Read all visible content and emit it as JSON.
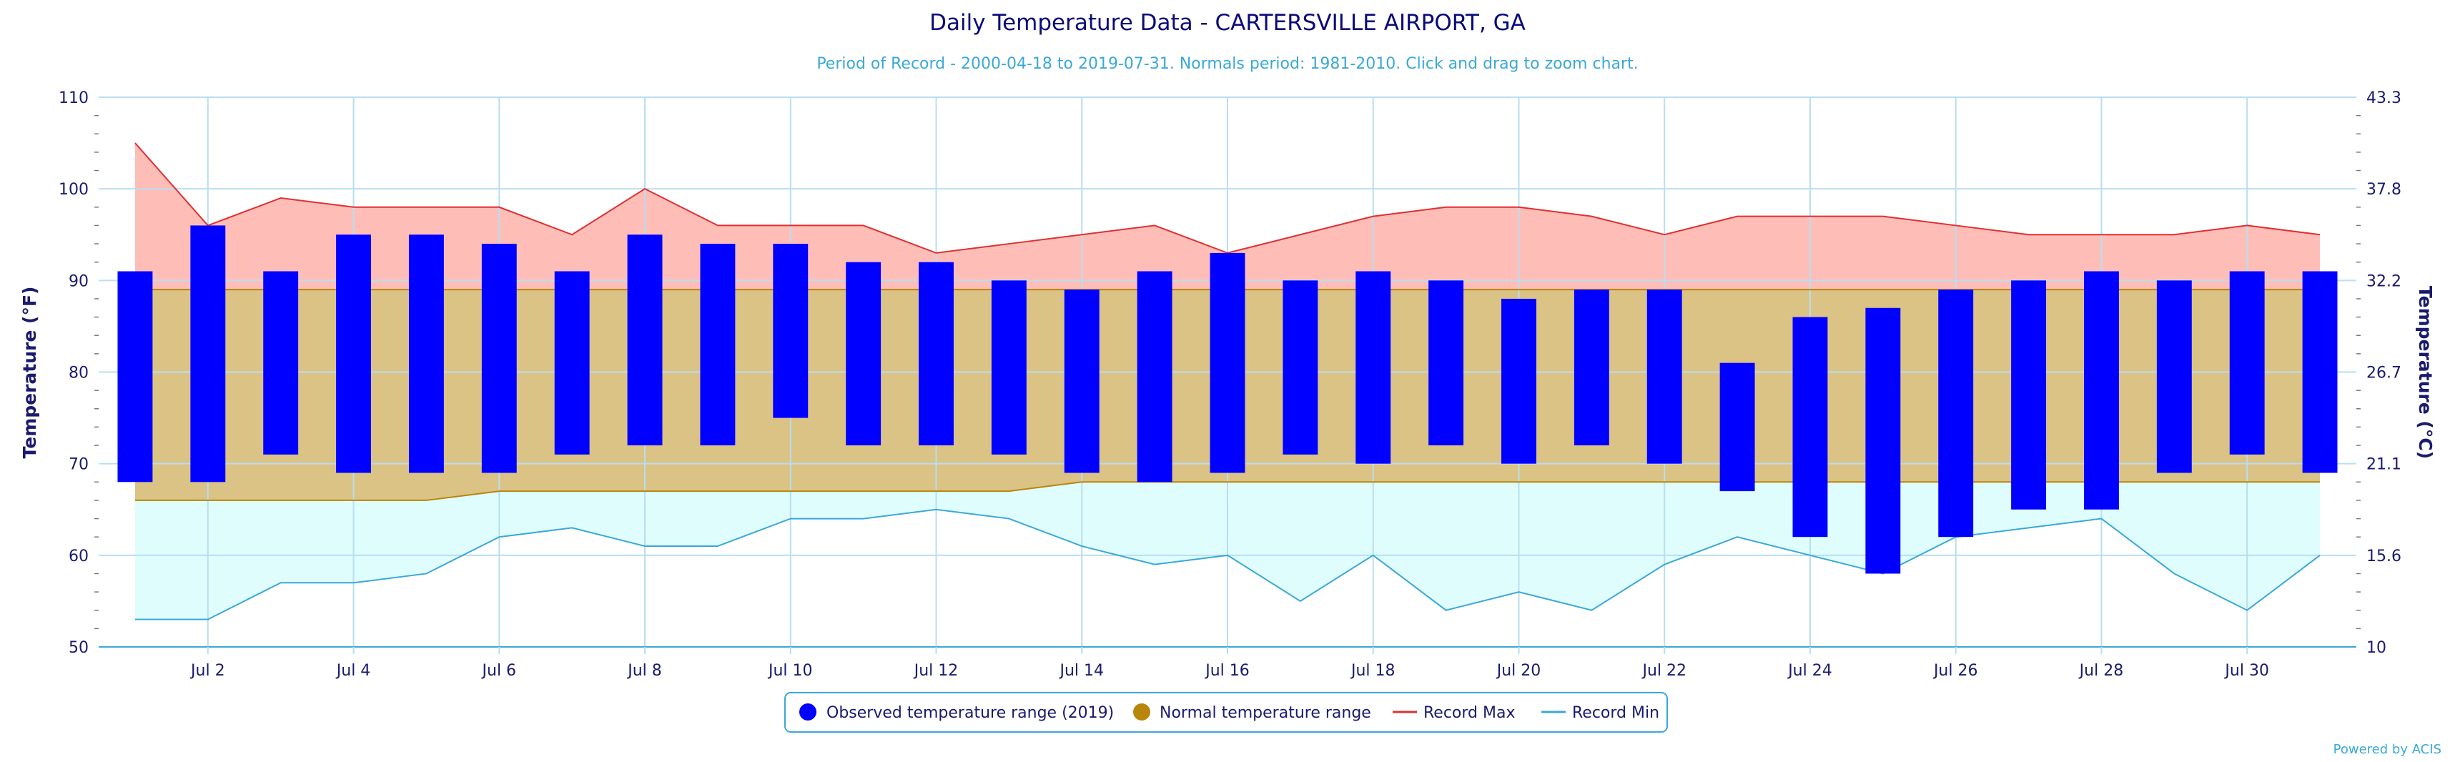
{
  "chart_data": {
    "type": "bar",
    "title": "Daily Temperature Data - CARTERSVILLE AIRPORT, GA",
    "subtitle": "Period of Record - 2000-04-18 to 2019-07-31. Normals period: 1981-2010. Click and drag to zoom chart.",
    "ylabel": "Temperature (°F)",
    "ylabel_right": "Temperature (°C)",
    "ylim": [
      50,
      110
    ],
    "yticks": [
      50,
      60,
      70,
      80,
      90,
      100,
      110
    ],
    "yticks_right": [
      "10",
      "15.6",
      "21.1",
      "26.7",
      "32.2",
      "37.8",
      "43.3"
    ],
    "days": [
      1,
      2,
      3,
      4,
      5,
      6,
      7,
      8,
      9,
      10,
      11,
      12,
      13,
      14,
      15,
      16,
      17,
      18,
      19,
      20,
      21,
      22,
      23,
      24,
      25,
      26,
      27,
      28,
      29,
      30,
      31
    ],
    "xtick_labels": [
      "Jul 2",
      "Jul 4",
      "Jul 6",
      "Jul 8",
      "Jul 10",
      "Jul 12",
      "Jul 14",
      "Jul 16",
      "Jul 18",
      "Jul 20",
      "Jul 22",
      "Jul 24",
      "Jul 26",
      "Jul 28",
      "Jul 30"
    ],
    "xtick_days": [
      2,
      4,
      6,
      8,
      10,
      12,
      14,
      16,
      18,
      20,
      22,
      24,
      26,
      28,
      30
    ],
    "observed_max": [
      91,
      96,
      91,
      95,
      95,
      94,
      91,
      95,
      94,
      94,
      92,
      92,
      90,
      89,
      91,
      93,
      90,
      91,
      90,
      88,
      89,
      89,
      81,
      86,
      87,
      89,
      90,
      91,
      90,
      91,
      91
    ],
    "observed_min": [
      68,
      68,
      71,
      69,
      69,
      69,
      71,
      72,
      72,
      75,
      72,
      72,
      71,
      69,
      68,
      69,
      71,
      70,
      72,
      70,
      72,
      70,
      67,
      62,
      58,
      62,
      65,
      65,
      69,
      71,
      69
    ],
    "normal_max": [
      89,
      89,
      89,
      89,
      89,
      89,
      89,
      89,
      89,
      89,
      89,
      89,
      89,
      89,
      89,
      89,
      89,
      89,
      89,
      89,
      89,
      89,
      89,
      89,
      89,
      89,
      89,
      89,
      89,
      89,
      89
    ],
    "normal_min": [
      66,
      66,
      66,
      66,
      66,
      67,
      67,
      67,
      67,
      67,
      67,
      67,
      67,
      68,
      68,
      68,
      68,
      68,
      68,
      68,
      68,
      68,
      68,
      68,
      68,
      68,
      68,
      68,
      68,
      68,
      68
    ],
    "record_max": [
      105,
      96,
      99,
      98,
      98,
      98,
      95,
      100,
      96,
      96,
      96,
      93,
      94,
      95,
      96,
      93,
      95,
      97,
      98,
      98,
      97,
      95,
      97,
      97,
      97,
      96,
      95,
      95,
      95,
      96,
      95
    ],
    "record_min": [
      53,
      53,
      57,
      57,
      58,
      62,
      63,
      61,
      61,
      64,
      64,
      65,
      64,
      61,
      59,
      60,
      55,
      60,
      54,
      56,
      54,
      59,
      62,
      60,
      58,
      62,
      63,
      64,
      58,
      54,
      60
    ],
    "legend": [
      {
        "label": "Observed temperature range (2019)",
        "color": "#0000ff"
      },
      {
        "label": "Normal temperature range",
        "color": "#b8860b"
      },
      {
        "label": "Record Max",
        "color": "#e03030"
      },
      {
        "label": "Record Min",
        "color": "#3aa8d8"
      }
    ],
    "legend_position": "bottom-center",
    "grid": true,
    "credit": "Powered by ACIS"
  },
  "colors": {
    "observed": "#0000ff",
    "normal_fill": "#dbc285",
    "normal_line": "#b8860b",
    "record_max_fill": "#ffbdb8",
    "record_max_line": "#e03030",
    "record_min_fill": "#e0fdfd",
    "record_min_line": "#3aa8d8",
    "grid": "#b8def0",
    "text": "#1a1a6e"
  }
}
